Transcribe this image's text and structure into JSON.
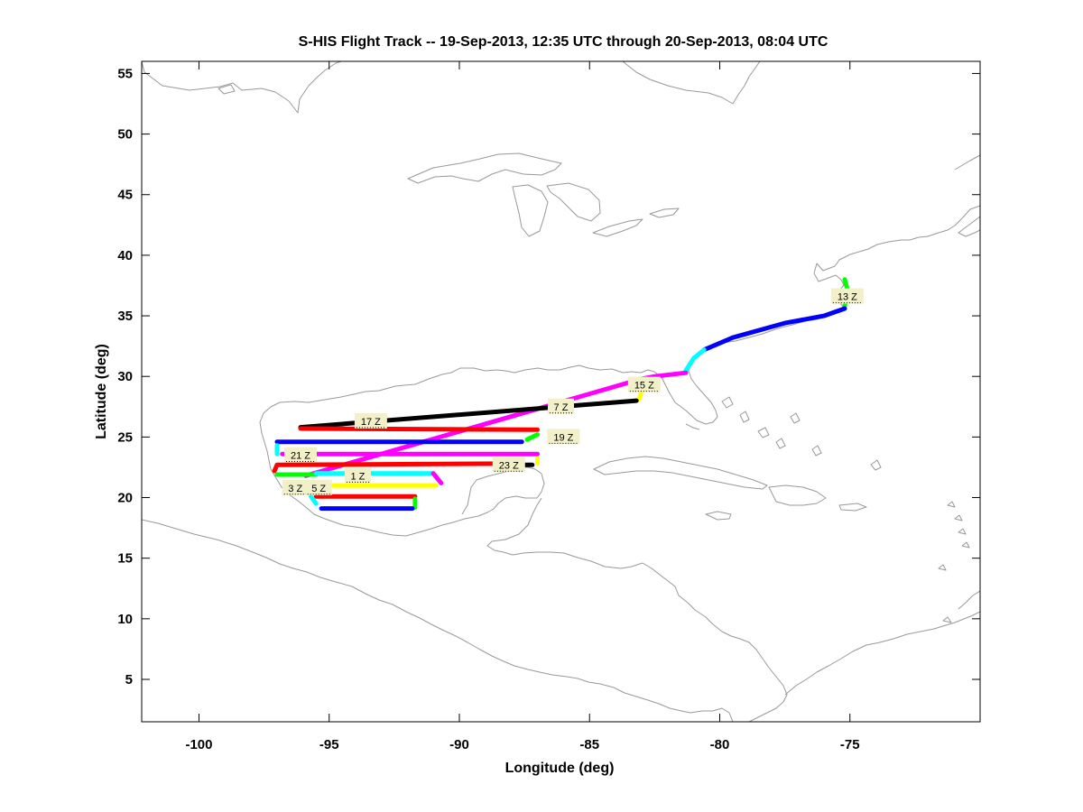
{
  "chart_data": {
    "type": "map-track",
    "title": "S-HIS Flight Track -- 19-Sep-2013, 12:35 UTC through 20-Sep-2013, 08:04 UTC",
    "xlabel": "Longitude (deg)",
    "ylabel": "Latitude (deg)",
    "xlim": [
      -102.2,
      -70.0
    ],
    "ylim": [
      1.5,
      56.0
    ],
    "xticks": [
      -100,
      -95,
      -90,
      -85,
      -80,
      -75
    ],
    "yticks": [
      5,
      10,
      15,
      20,
      25,
      30,
      35,
      40,
      45,
      50,
      55
    ],
    "xtick_labels": [
      "-100",
      "-95",
      "-90",
      "-85",
      "-80",
      "-75"
    ],
    "ytick_labels": [
      "5",
      "10",
      "15",
      "20",
      "25",
      "30",
      "35",
      "40",
      "45",
      "50",
      "55"
    ],
    "background_map": "coastlines",
    "colors": {
      "coast": "#999999",
      "label_bg": "#f2f0c8",
      "magenta": "#ff00ff",
      "blue": "#0000ff",
      "red": "#ff0000",
      "black": "#000000",
      "cyan": "#00ffff",
      "yellow": "#ffff00",
      "green": "#00ff00"
    },
    "segments": [
      {
        "color": "green",
        "points": [
          [
            -75.2,
            38.0
          ],
          [
            -75.1,
            37.2
          ],
          [
            -75.2,
            35.8
          ]
        ]
      },
      {
        "color": "blue",
        "points": [
          [
            -75.2,
            35.6
          ],
          [
            -76.0,
            35.0
          ],
          [
            -77.5,
            34.4
          ],
          [
            -79.5,
            33.2
          ],
          [
            -80.6,
            32.2
          ]
        ]
      },
      {
        "color": "cyan",
        "points": [
          [
            -80.6,
            32.2
          ],
          [
            -81.0,
            31.5
          ],
          [
            -81.3,
            30.5
          ]
        ]
      },
      {
        "color": "magenta",
        "points": [
          [
            -81.3,
            30.3
          ],
          [
            -82.5,
            30.0
          ],
          [
            -83.0,
            29.8
          ],
          [
            -95.9,
            21.8
          ]
        ]
      },
      {
        "color": "yellow",
        "points": [
          [
            -83.0,
            28.8
          ],
          [
            -83.1,
            28.1
          ]
        ]
      },
      {
        "color": "black",
        "points": [
          [
            -83.2,
            28.0
          ],
          [
            -96.1,
            25.8
          ]
        ]
      },
      {
        "color": "red",
        "points": [
          [
            -96.1,
            25.7
          ],
          [
            -87.0,
            25.6
          ]
        ]
      },
      {
        "color": "green",
        "points": [
          [
            -87.0,
            25.2
          ],
          [
            -87.4,
            24.8
          ]
        ]
      },
      {
        "color": "blue",
        "points": [
          [
            -87.6,
            24.6
          ],
          [
            -97.0,
            24.6
          ]
        ]
      },
      {
        "color": "cyan",
        "points": [
          [
            -97.0,
            24.3
          ],
          [
            -97.0,
            23.6
          ]
        ]
      },
      {
        "color": "magenta",
        "points": [
          [
            -96.8,
            23.6
          ],
          [
            -87.0,
            23.6
          ]
        ]
      },
      {
        "color": "yellow",
        "points": [
          [
            -87.0,
            23.2
          ],
          [
            -87.0,
            22.8
          ]
        ]
      },
      {
        "color": "black",
        "points": [
          [
            -87.2,
            22.7
          ],
          [
            -88.5,
            22.7
          ]
        ]
      },
      {
        "color": "red",
        "points": [
          [
            -88.5,
            22.8
          ],
          [
            -97.0,
            22.7
          ],
          [
            -97.1,
            22.2
          ]
        ]
      },
      {
        "color": "green",
        "points": [
          [
            -97.0,
            21.9
          ],
          [
            -95.5,
            21.9
          ]
        ]
      },
      {
        "color": "cyan",
        "points": [
          [
            -95.5,
            22.0
          ],
          [
            -91.0,
            22.0
          ]
        ]
      },
      {
        "color": "magenta",
        "points": [
          [
            -91.0,
            22.0
          ],
          [
            -90.7,
            21.2
          ]
        ]
      },
      {
        "color": "yellow",
        "points": [
          [
            -90.9,
            21.0
          ],
          [
            -96.0,
            21.0
          ]
        ]
      },
      {
        "color": "black",
        "points": [
          [
            -96.0,
            20.8
          ],
          [
            -96.5,
            20.6
          ]
        ]
      },
      {
        "color": "red",
        "points": [
          [
            -95.5,
            20.1
          ],
          [
            -91.7,
            20.1
          ]
        ]
      },
      {
        "color": "green",
        "points": [
          [
            -91.7,
            19.9
          ],
          [
            -91.7,
            19.2
          ]
        ]
      },
      {
        "color": "blue",
        "points": [
          [
            -91.8,
            19.1
          ],
          [
            -95.3,
            19.1
          ]
        ]
      },
      {
        "color": "cyan",
        "points": [
          [
            -95.5,
            19.5
          ],
          [
            -95.7,
            20.1
          ]
        ]
      }
    ],
    "hour_labels": [
      {
        "text": "13 Z",
        "lon": -75.1,
        "lat": 36.6
      },
      {
        "text": "15 Z",
        "lon": -82.9,
        "lat": 29.3
      },
      {
        "text": "7 Z",
        "lon": -86.1,
        "lat": 27.5
      },
      {
        "text": "17 Z",
        "lon": -93.4,
        "lat": 26.3
      },
      {
        "text": "19 Z",
        "lon": -86.0,
        "lat": 25.0
      },
      {
        "text": "21 Z",
        "lon": -96.1,
        "lat": 23.5
      },
      {
        "text": "23 Z",
        "lon": -88.1,
        "lat": 22.7
      },
      {
        "text": "1 Z",
        "lon": -93.9,
        "lat": 21.8
      },
      {
        "text": "3 Z",
        "lon": -96.3,
        "lat": 20.8
      },
      {
        "text": "5 Z",
        "lon": -95.4,
        "lat": 20.8
      }
    ]
  }
}
